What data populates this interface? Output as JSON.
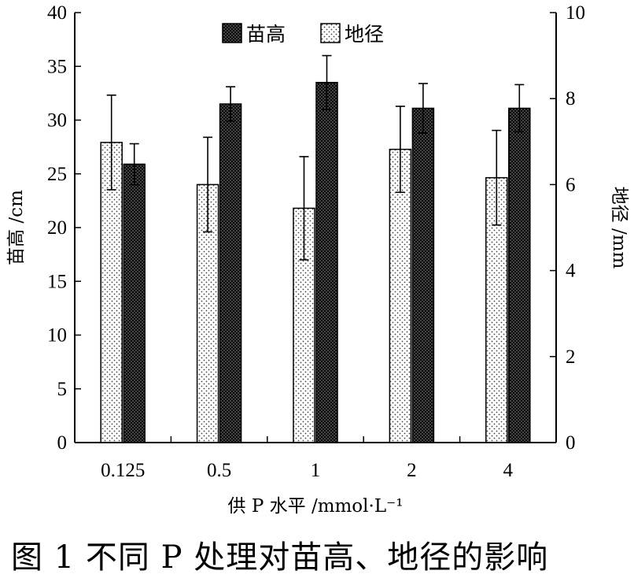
{
  "chart_data": {
    "type": "bar",
    "categories": [
      "0.125",
      "0.5",
      "1",
      "2",
      "4"
    ],
    "series": [
      {
        "name": "地径",
        "axis": "right",
        "unit": "mm",
        "pattern": "dotted",
        "values": [
          6.98,
          6.0,
          5.45,
          6.82,
          6.16
        ],
        "errors": [
          1.1,
          1.1,
          1.2,
          1.0,
          1.1
        ]
      },
      {
        "name": "苗高",
        "axis": "left",
        "unit": "cm",
        "pattern": "dense-black",
        "values": [
          25.9,
          31.5,
          33.5,
          31.1,
          31.1
        ],
        "errors": [
          1.9,
          1.6,
          2.5,
          2.3,
          2.2
        ]
      }
    ],
    "legend_order": [
      "苗高",
      "地径"
    ],
    "legend_position": "top-center",
    "xlabel": "供 P 水平 /mmol·L⁻¹",
    "ylabel_left": "苗高 /cm",
    "ylabel_right": "地径 /mm",
    "ylim_left": [
      0,
      40
    ],
    "yticks_left": [
      "0",
      "5",
      "10",
      "15",
      "20",
      "25",
      "30",
      "35",
      "40"
    ],
    "ylim_right": [
      0,
      10
    ],
    "yticks_right": [
      "0",
      "2",
      "4",
      "6",
      "8",
      "10"
    ],
    "grid": false
  },
  "caption": "图 1   不同 P 处理对苗高、地径的影响"
}
